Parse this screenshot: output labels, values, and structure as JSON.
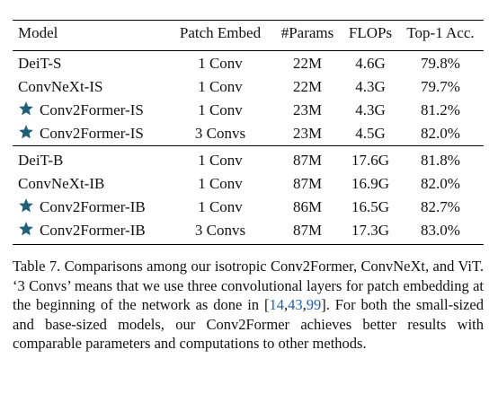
{
  "table": {
    "headers": [
      "Model",
      "Patch Embed",
      "#Params",
      "FLOPs",
      "Top-1 Acc."
    ],
    "rows": [
      {
        "model": "DeiT-S",
        "star": false,
        "embed": "1 Conv",
        "params": "22M",
        "flops": "4.6G",
        "acc": "79.8%"
      },
      {
        "model": "ConvNeXt-IS",
        "star": false,
        "embed": "1 Conv",
        "params": "22M",
        "flops": "4.3G",
        "acc": "79.7%"
      },
      {
        "model": "Conv2Former-IS",
        "star": true,
        "embed": "1 Conv",
        "params": "23M",
        "flops": "4.3G",
        "acc": "81.2%"
      },
      {
        "model": "Conv2Former-IS",
        "star": true,
        "embed": "3 Convs",
        "params": "23M",
        "flops": "4.5G",
        "acc": "82.0%"
      },
      {
        "model": "DeiT-B",
        "star": false,
        "embed": "1 Conv",
        "params": "87M",
        "flops": "17.6G",
        "acc": "81.8%"
      },
      {
        "model": "ConvNeXt-IB",
        "star": false,
        "embed": "1 Conv",
        "params": "87M",
        "flops": "16.9G",
        "acc": "82.0%"
      },
      {
        "model": "Conv2Former-IB",
        "star": true,
        "embed": "1 Conv",
        "params": "86M",
        "flops": "16.5G",
        "acc": "82.7%"
      },
      {
        "model": "Conv2Former-IB",
        "star": true,
        "embed": "3 Convs",
        "params": "87M",
        "flops": "17.3G",
        "acc": "83.0%"
      }
    ]
  },
  "caption": {
    "part1": "Table 7.  Comparisons among our isotropic Conv2Former, ConvNeXt, and ViT. ‘3 Convs’ means that we use three convolutional layers for patch embedding at the beginning of the network as done in [",
    "cite1": "14",
    "sep1": ",",
    "cite2": "43",
    "sep2": ",",
    "cite3": "99",
    "part2": "]. For both the small-sized and base-sized models, our Conv2Former achieves better results with comparable parameters and computations to other methods."
  },
  "colors": {
    "star": "#1f5f7a",
    "cite": "#1a5fb4"
  },
  "icons": {
    "star": "star-icon"
  }
}
